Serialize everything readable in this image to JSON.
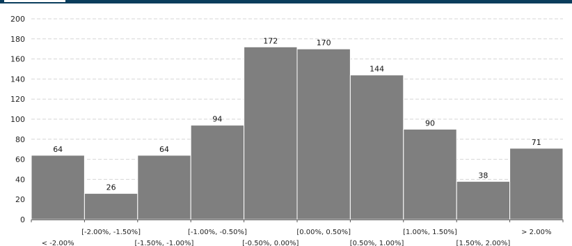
{
  "colors": {
    "top_bar": "#0a3d5c",
    "bar_fill": "#7f7f7f",
    "bar_edge": "#ffffff",
    "gridline": "#d6d6d6",
    "axis": "#555555"
  },
  "chart_data": {
    "type": "bar",
    "title": "",
    "xlabel": "",
    "ylabel": "",
    "ylim": [
      0,
      200
    ],
    "yticks": [
      0,
      20,
      40,
      60,
      80,
      100,
      120,
      140,
      160,
      180,
      200
    ],
    "grid": "horizontal dashed",
    "legend": "none",
    "categories": [
      "< -2.00%",
      "[-2.00%, -1.50%]",
      "[-1.50%, -1.00%]",
      "[-1.00%, -0.50%]",
      "[-0.50%, 0.00%]",
      "[0.00%, 0.50%]",
      "[0.50%, 1.00%]",
      "[1.00%, 1.50%]",
      "[1.50%, 2.00%]",
      "> 2.00%"
    ],
    "values": [
      64,
      26,
      64,
      94,
      172,
      170,
      144,
      90,
      38,
      71
    ]
  }
}
